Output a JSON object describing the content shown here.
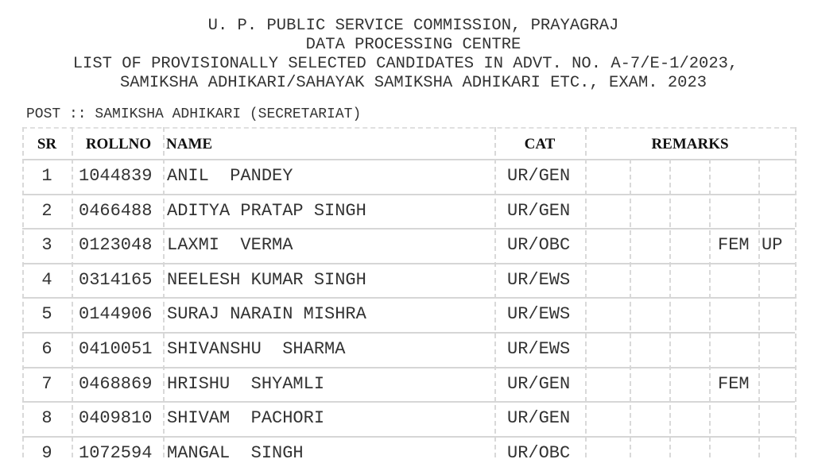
{
  "header": {
    "lines": [
      "U. P. PUBLIC SERVICE COMMISSION, PRAYAGRAJ",
      "DATA PROCESSING CENTRE",
      "LIST OF PROVISIONALLY SELECTED CANDIDATES IN ADVT. NO. A-7/E-1/2023,",
      "SAMIKSHA ADHIKARI/SAHAYAK SAMIKSHA ADHIKARI ETC., EXAM. 2023"
    ]
  },
  "post": "POST :: SAMIKSHA ADHIKARI (SECRETARIAT)",
  "columns": {
    "sr": "SR",
    "rollno": "ROLLNO",
    "name": "NAME",
    "cat": "CAT",
    "remarks": "REMARKS"
  },
  "rows": [
    {
      "sr": "1",
      "rollno": "1044839",
      "name": "ANIL  PANDEY",
      "cat": "UR/GEN",
      "r3": "",
      "r4": ""
    },
    {
      "sr": "2",
      "rollno": "0466488",
      "name": "ADITYA PRATAP SINGH",
      "cat": "UR/GEN",
      "r3": "",
      "r4": ""
    },
    {
      "sr": "3",
      "rollno": "0123048",
      "name": "LAXMI  VERMA",
      "cat": "UR/OBC",
      "r3": "FEM",
      "r4": "UP"
    },
    {
      "sr": "4",
      "rollno": "0314165",
      "name": "NEELESH KUMAR SINGH",
      "cat": "UR/EWS",
      "r3": "",
      "r4": ""
    },
    {
      "sr": "5",
      "rollno": "0144906",
      "name": "SURAJ NARAIN MISHRA",
      "cat": "UR/EWS",
      "r3": "",
      "r4": ""
    },
    {
      "sr": "6",
      "rollno": "0410051",
      "name": "SHIVANSHU  SHARMA",
      "cat": "UR/EWS",
      "r3": "",
      "r4": ""
    },
    {
      "sr": "7",
      "rollno": "0468869",
      "name": "HRISHU  SHYAMLI",
      "cat": "UR/GEN",
      "r3": "FEM",
      "r4": ""
    },
    {
      "sr": "8",
      "rollno": "0409810",
      "name": "SHIVAM  PACHORI",
      "cat": "UR/GEN",
      "r3": "",
      "r4": ""
    },
    {
      "sr": "9",
      "rollno": "1072594",
      "name": "MANGAL  SINGH",
      "cat": "UR/OBC",
      "r3": "",
      "r4": ""
    }
  ]
}
